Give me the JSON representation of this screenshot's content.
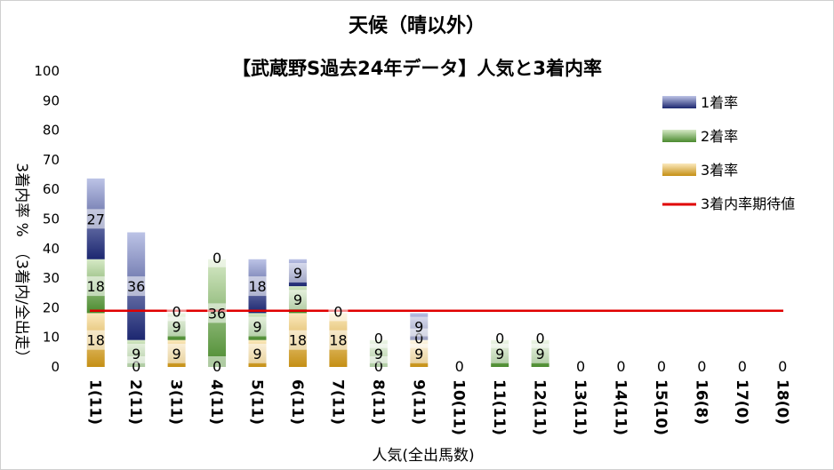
{
  "chart_data": {
    "type": "bar",
    "title": "天候（晴以外）",
    "subtitle": "【武蔵野S過去24年データ】人気と3着内率",
    "xlabel": "人気(全出馬数)",
    "ylabel": "3着内率 %　（3着内/全出走）",
    "ylim": [
      0,
      100
    ],
    "yticks": [
      "0",
      "10",
      "20",
      "30",
      "40",
      "50",
      "60",
      "70",
      "80",
      "90",
      "100"
    ],
    "categories": [
      "1(11)",
      "2(11)",
      "3(11)",
      "4(11)",
      "5(11)",
      "6(11)",
      "7(11)",
      "8(11)",
      "9(11)",
      "10(11)",
      "11(11)",
      "12(11)",
      "13(11)",
      "14(11)",
      "15(10)",
      "16(8)",
      "17(0)",
      "18(0)"
    ],
    "series": [
      {
        "name": "3着率",
        "color": "#d9b45a",
        "values": [
          18.2,
          0,
          9.1,
          0,
          9.1,
          18.2,
          18.2,
          0,
          9.1,
          0,
          0,
          0,
          0,
          0,
          0,
          0,
          0,
          0
        ]
      },
      {
        "name": "2着率",
        "color": "#6aa84f",
        "values": [
          18.2,
          9.1,
          9.1,
          36.4,
          9.1,
          9.1,
          0,
          9.1,
          0,
          0,
          9.1,
          9.1,
          0,
          0,
          0,
          0,
          0,
          0
        ]
      },
      {
        "name": "1着率",
        "color": "#3b4a9a",
        "values": [
          27.3,
          36.4,
          0,
          0,
          18.2,
          9.1,
          0,
          0,
          9.1,
          0,
          0,
          0,
          0,
          0,
          0,
          0,
          0,
          0
        ]
      }
    ],
    "data_labels": {
      "3着率": [
        "18",
        "0",
        "9",
        "0",
        "9",
        "18",
        "18",
        "0",
        "9",
        "0",
        "",
        "",
        "0",
        "0",
        "0",
        "0",
        "0",
        "0"
      ],
      "2着率": [
        "18",
        "9",
        "9",
        "36",
        "9",
        "9",
        "",
        "9",
        "0",
        "",
        "9",
        "9",
        "",
        "",
        "",
        "",
        "",
        ""
      ],
      "1着率": [
        "27",
        "36",
        "0",
        "0",
        "18",
        "9",
        "0",
        "0",
        "9",
        "",
        "0",
        "0",
        "",
        "",
        "",
        "",
        "",
        ""
      ]
    },
    "reference_line": {
      "name": "3着内率期待値",
      "value": 19,
      "color": "#e00000"
    },
    "legend_position": "right",
    "grid": false
  }
}
